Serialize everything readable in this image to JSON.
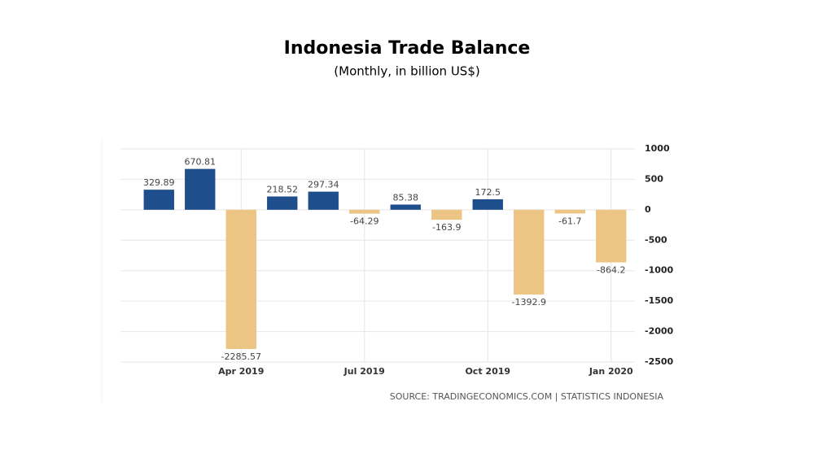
{
  "chart_data": {
    "type": "bar",
    "title": "Indonesia Trade Balance",
    "subtitle": "(Monthly, in billion US$)",
    "source": "SOURCE: TRADINGECONOMICS.COM | STATISTICS INDONESIA",
    "categories": [
      null,
      null,
      "Apr 2019",
      null,
      null,
      "Jul 2019",
      null,
      null,
      "Oct 2019",
      null,
      null,
      "Jan 2020"
    ],
    "values": [
      329.89,
      670.81,
      -2285.57,
      218.52,
      297.34,
      -64.29,
      85.38,
      -163.9,
      172.5,
      -1392.9,
      -61.7,
      -864.2
    ],
    "positive_color": "#1f4e8c",
    "negative_color": "#ecc585",
    "ylim": [
      -2500,
      1000
    ],
    "yticks": [
      1000,
      500,
      0,
      -500,
      -1000,
      -1500,
      -2000,
      -2500
    ],
    "grid": true
  }
}
